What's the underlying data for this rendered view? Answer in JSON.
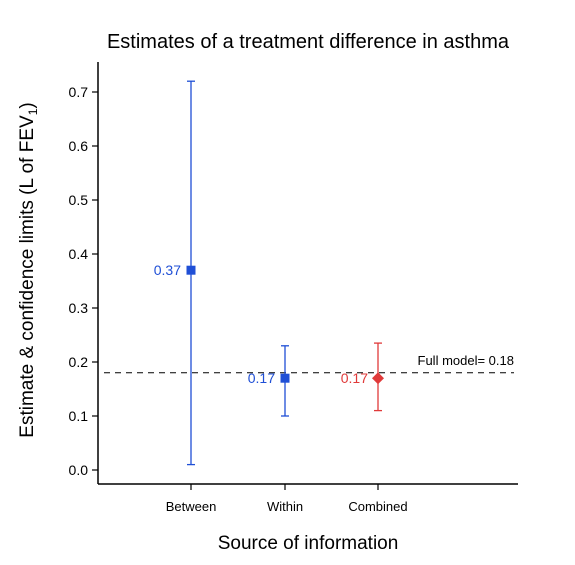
{
  "colors": {
    "blue": "#1f4fd6",
    "red": "#e03a3a",
    "axis": "#000000",
    "reference": "#000000"
  },
  "chart_data": {
    "type": "scatter",
    "title": "Estimates of a treatment difference in asthma",
    "xlabel": "Source of information",
    "ylabel_main": "Estimate & confidence limits (L of FEV",
    "ylabel_sub": "1",
    "ylabel_close": ")",
    "categories": [
      "Between",
      "Within",
      "Combined"
    ],
    "yticks": [
      "0.0",
      "0.1",
      "0.2",
      "0.3",
      "0.4",
      "0.5",
      "0.6",
      "0.7"
    ],
    "ylim": [
      -0.025,
      0.75
    ],
    "points": [
      {
        "category": "Between",
        "estimate": 0.37,
        "lower": 0.01,
        "upper": 0.72,
        "label": "0.37",
        "marker": "square",
        "color": "#1f4fd6"
      },
      {
        "category": "Within",
        "estimate": 0.17,
        "lower": 0.1,
        "upper": 0.23,
        "label": "0.17",
        "marker": "square",
        "color": "#1f4fd6"
      },
      {
        "category": "Combined",
        "estimate": 0.17,
        "lower": 0.11,
        "upper": 0.235,
        "label": "0.17",
        "marker": "diamond",
        "color": "#e03a3a"
      }
    ],
    "reference_line": {
      "value": 0.18,
      "label": "Full model= 0.18"
    },
    "grid": false,
    "legend": "none"
  }
}
